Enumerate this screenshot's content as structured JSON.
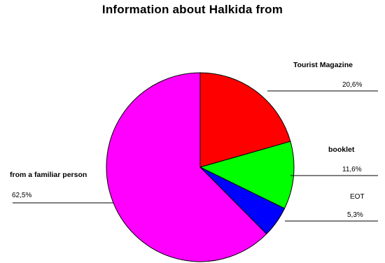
{
  "chart_data": {
    "type": "pie",
    "title": "Information about Halkida from",
    "slices": [
      {
        "name": "Tourist Magazine",
        "value": 20.6,
        "label": "20,6%",
        "color": "#ff0000"
      },
      {
        "name": "booklet",
        "value": 11.6,
        "label": "11,6%",
        "color": "#00ff00"
      },
      {
        "name": "EOT",
        "value": 5.3,
        "label": "5,3%",
        "color": "#0000ff"
      },
      {
        "name": "from a familiar person",
        "value": 62.5,
        "label": "62,5%",
        "color": "#ff00ff"
      }
    ],
    "start_angle": "12 o'clock",
    "direction": "clockwise",
    "legend": "none"
  }
}
